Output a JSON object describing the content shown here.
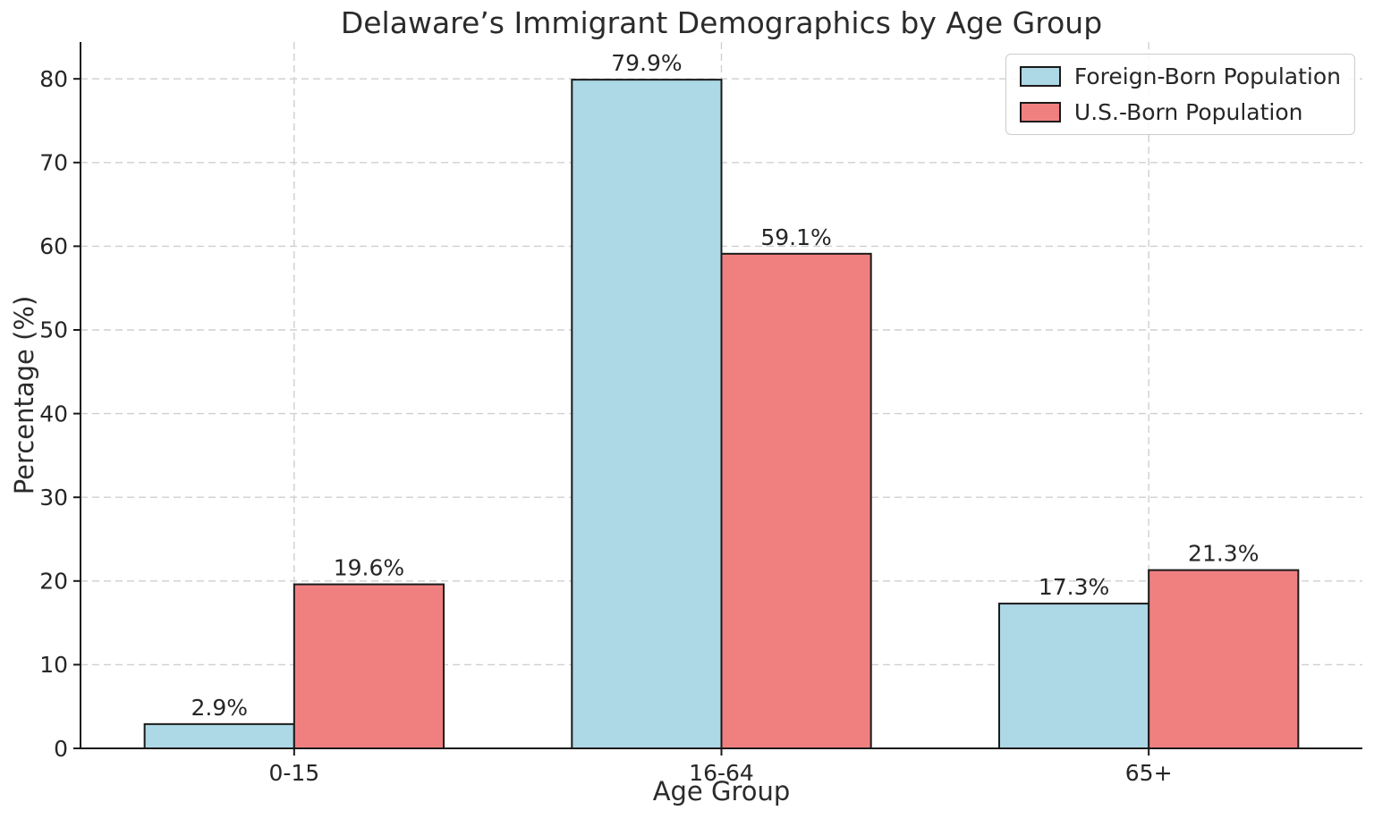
{
  "chart_data": {
    "type": "bar",
    "title": "Delaware’s Immigrant Demographics by Age Group",
    "xlabel": "Age Group",
    "ylabel": "Percentage (%)",
    "categories": [
      "0-15",
      "16-64",
      "65+"
    ],
    "series": [
      {
        "name": "Foreign-Born Population",
        "color": "#ADD8E6",
        "edge_color": "#1a1a1a",
        "values": [
          2.9,
          79.9,
          17.3
        ],
        "labels": [
          "2.9%",
          "79.9%",
          "17.3%"
        ]
      },
      {
        "name": "U.S.-Born Population",
        "color": "#F08080",
        "edge_color": "#1a1a1a",
        "values": [
          19.6,
          59.1,
          21.3
        ],
        "labels": [
          "19.6%",
          "59.1%",
          "21.3%"
        ]
      }
    ],
    "yticks": [
      0,
      10,
      20,
      30,
      40,
      50,
      60,
      70,
      80
    ],
    "ylim": [
      0,
      84.4
    ],
    "bar_width": 0.35,
    "grid": "dashed-both-axes",
    "legend_position": "upper-right",
    "background": "#ffffff"
  }
}
